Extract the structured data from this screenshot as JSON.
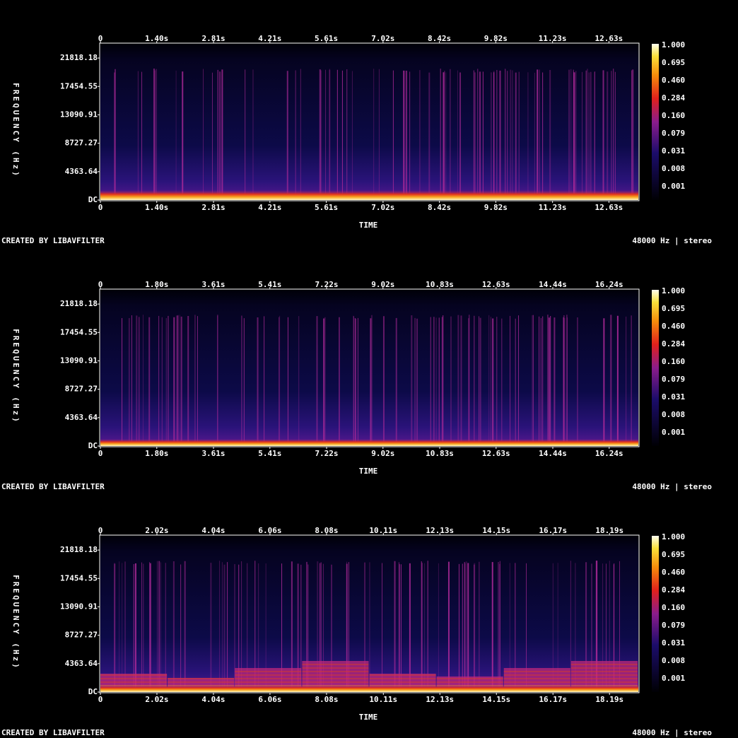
{
  "chart_data": [
    {
      "type": "spectrogram",
      "x_label": "TIME",
      "y_label": "FREQUENCY (Hz)",
      "xlim": [
        0,
        13.36
      ],
      "xticks": [
        0,
        {
          "value": 1.4,
          "label": "1.40s"
        },
        {
          "value": 2.81,
          "label": "2.81s"
        },
        {
          "value": 4.21,
          "label": "4.21s"
        },
        {
          "value": 5.61,
          "label": "5.61s"
        },
        {
          "value": 7.02,
          "label": "7.02s"
        },
        {
          "value": 8.42,
          "label": "8.42s"
        },
        {
          "value": 9.82,
          "label": "9.82s"
        },
        {
          "value": 11.23,
          "label": "11.23s"
        },
        {
          "value": 12.63,
          "label": "12.63s"
        }
      ],
      "ylim": [
        0,
        24000
      ],
      "yticks": [
        {
          "value": 0,
          "label": "DC"
        },
        4363.64,
        8727.27,
        13090.91,
        17454.55,
        21818.18
      ],
      "colorbar_ticks": [
        {
          "value": 1,
          "label": "1.000"
        },
        0.695,
        {
          "value": 0.46,
          "label": "0.460"
        },
        0.284,
        {
          "value": 0.16,
          "label": "0.160"
        },
        0.079,
        0.031,
        0.008,
        0.001
      ],
      "footer_left": "CREATED BY LIBAVFILTER",
      "footer_right": "48000 Hz | stereo"
    },
    {
      "type": "spectrogram",
      "x_label": "TIME",
      "y_label": "FREQUENCY (Hz)",
      "xlim": [
        0,
        17.17
      ],
      "xticks": [
        0,
        {
          "value": 1.8,
          "label": "1.80s"
        },
        {
          "value": 3.61,
          "label": "3.61s"
        },
        {
          "value": 5.41,
          "label": "5.41s"
        },
        {
          "value": 7.22,
          "label": "7.22s"
        },
        {
          "value": 9.02,
          "label": "9.02s"
        },
        {
          "value": 10.83,
          "label": "10.83s"
        },
        {
          "value": 12.63,
          "label": "12.63s"
        },
        {
          "value": 14.44,
          "label": "14.44s"
        },
        {
          "value": 16.24,
          "label": "16.24s"
        }
      ],
      "ylim": [
        0,
        24000
      ],
      "yticks": [
        {
          "value": 0,
          "label": "DC"
        },
        4363.64,
        8727.27,
        13090.91,
        17454.55,
        21818.18
      ],
      "colorbar_ticks": [
        {
          "value": 1,
          "label": "1.000"
        },
        0.695,
        {
          "value": 0.46,
          "label": "0.460"
        },
        0.284,
        {
          "value": 0.16,
          "label": "0.160"
        },
        0.079,
        0.031,
        0.008,
        0.001
      ],
      "footer_left": "CREATED BY LIBAVFILTER",
      "footer_right": "48000 Hz | stereo"
    },
    {
      "type": "spectrogram",
      "x_label": "TIME",
      "y_label": "FREQUENCY (Hz)",
      "xlim": [
        0,
        19.22
      ],
      "xticks": [
        0,
        {
          "value": 2.02,
          "label": "2.02s"
        },
        {
          "value": 4.04,
          "label": "4.04s"
        },
        {
          "value": 6.06,
          "label": "6.06s"
        },
        {
          "value": 8.08,
          "label": "8.08s"
        },
        {
          "value": 10.11,
          "label": "10.11s"
        },
        {
          "value": 12.13,
          "label": "12.13s"
        },
        {
          "value": 14.15,
          "label": "14.15s"
        },
        {
          "value": 16.17,
          "label": "16.17s"
        },
        {
          "value": 18.19,
          "label": "18.19s"
        }
      ],
      "ylim": [
        0,
        24000
      ],
      "yticks": [
        {
          "value": 0,
          "label": "DC"
        },
        4363.64,
        8727.27,
        13090.91,
        17454.55,
        21818.18
      ],
      "colorbar_ticks": [
        {
          "value": 1,
          "label": "1.000"
        },
        0.695,
        {
          "value": 0.46,
          "label": "0.460"
        },
        0.284,
        {
          "value": 0.16,
          "label": "0.160"
        },
        0.079,
        0.031,
        0.008,
        0.001
      ],
      "footer_left": "CREATED BY LIBAVFILTER",
      "footer_right": "48000 Hz | stereo"
    }
  ]
}
